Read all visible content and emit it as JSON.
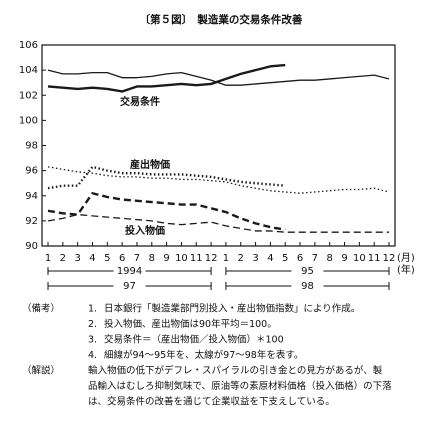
{
  "chart_data": {
    "type": "line",
    "title": "〔第５図〕　製造業の交易条件改善",
    "categories": [
      "1",
      "2",
      "3",
      "4",
      "5",
      "6",
      "7",
      "8",
      "9",
      "10",
      "11",
      "12",
      "1",
      "2",
      "3",
      "4",
      "5",
      "6",
      "7",
      "8",
      "9",
      "10",
      "11",
      "12"
    ],
    "x_unit_month": "(月)",
    "x_unit_year": "(年)",
    "year_labels_thin": [
      "1994",
      "95"
    ],
    "year_labels_thick": [
      "97",
      "98"
    ],
    "ylim": [
      90,
      106
    ],
    "yticks": [
      90,
      92,
      94,
      96,
      98,
      100,
      102,
      104,
      106
    ],
    "annotations": [
      "交易条件",
      "産出物価",
      "投入物価"
    ],
    "series": [
      {
        "color": "#1a1a1a",
        "line_width": 1.3,
        "dash": "solid",
        "values": [
          104.0,
          103.7,
          103.7,
          103.8,
          103.8,
          103.4,
          103.4,
          103.5,
          103.7,
          103.8,
          103.5,
          103.2,
          102.8,
          102.8,
          102.9,
          103.0,
          103.1,
          103.2,
          103.2,
          103.3,
          103.4,
          103.5,
          103.6,
          103.3
        ]
      },
      {
        "color": "#1a1a1a",
        "line_width": 2.4,
        "dash": "solid",
        "values": [
          102.7,
          102.6,
          102.5,
          102.6,
          102.5,
          102.3,
          102.7,
          102.7,
          102.8,
          102.9,
          102.8,
          102.9,
          103.3,
          103.7,
          104.0,
          104.3,
          104.4,
          null,
          null,
          null,
          null,
          null,
          null,
          null
        ]
      },
      {
        "color": "#1a1a1a",
        "line_width": 1.3,
        "dash": "dotted",
        "values": [
          96.3,
          96.1,
          95.9,
          95.8,
          95.6,
          95.5,
          95.5,
          95.4,
          95.4,
          95.3,
          95.3,
          95.2,
          95.1,
          94.8,
          94.6,
          94.4,
          94.3,
          94.2,
          94.3,
          94.4,
          94.5,
          94.5,
          94.6,
          94.3
        ]
      },
      {
        "color": "#1a1a1a",
        "line_width": 2.4,
        "dash": "dotted",
        "values": [
          94.6,
          94.8,
          94.8,
          96.3,
          96.0,
          95.8,
          95.8,
          95.7,
          95.7,
          95.7,
          95.6,
          95.5,
          95.3,
          95.1,
          95.0,
          94.9,
          94.8,
          null,
          null,
          null,
          null,
          null,
          null,
          null
        ]
      },
      {
        "color": "#1a1a1a",
        "line_width": 1.3,
        "dash": "dashed",
        "values": [
          92.0,
          92.2,
          92.5,
          92.4,
          92.3,
          92.2,
          92.1,
          92.0,
          91.8,
          91.7,
          91.8,
          91.9,
          91.6,
          91.4,
          91.2,
          91.2,
          91.1,
          91.1,
          91.1,
          91.1,
          91.1,
          91.1,
          91.1,
          91.1
        ]
      },
      {
        "color": "#1a1a1a",
        "line_width": 2.4,
        "dash": "dashed",
        "values": [
          92.8,
          92.6,
          92.5,
          94.2,
          93.9,
          93.7,
          93.6,
          93.5,
          93.4,
          93.3,
          93.3,
          93.0,
          92.7,
          92.2,
          91.8,
          91.5,
          91.3,
          null,
          null,
          null,
          null,
          null,
          null,
          null
        ]
      }
    ]
  },
  "notes": {
    "label": "（備考）",
    "items": [
      {
        "num": "1.",
        "text": "日本銀行「製造業部門別投入・産出物価指数」により作成。"
      },
      {
        "num": "2.",
        "text": "投入物価、産出物価は90年平均＝100。"
      },
      {
        "num": "3.",
        "text": "交易条件＝（産出物価／投入物価）＊100"
      },
      {
        "num": "4.",
        "text": "細線が94～95年を、太線が97～98年を表す。"
      }
    ]
  },
  "explanation": {
    "label": "（解説）",
    "lines": [
      "輸入物価の低下がデフレ・スパイラルの引き金との見方があるが、製",
      "品輸入はむしろ抑制気味で、原油等の素原材料価格（投入価格）の下落",
      "は、交易条件の改善を通じて企業収益を下支えしている。"
    ]
  }
}
